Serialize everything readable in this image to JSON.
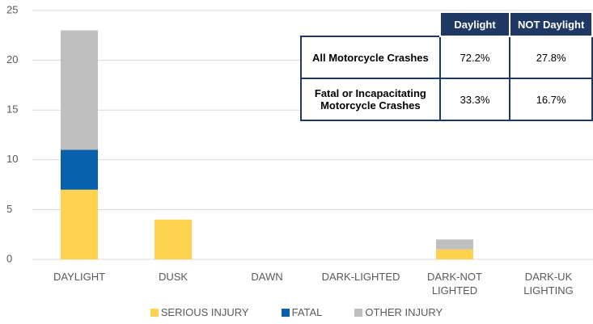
{
  "chart_data": {
    "type": "stacked_bar",
    "categories": [
      "DAYLIGHT",
      "DUSK",
      "DAWN",
      "DARK-LIGHTED",
      "DARK-NOT LIGHTED",
      "DARK-UK LIGHTING"
    ],
    "series": [
      {
        "name": "SERIOUS INJURY",
        "color": "#FFD34F",
        "values": [
          7,
          4,
          0,
          0,
          1,
          0
        ]
      },
      {
        "name": "FATAL",
        "color": "#0961AD",
        "values": [
          4,
          0,
          0,
          0,
          0,
          0
        ]
      },
      {
        "name": "OTHER INJURY",
        "color": "#BFBFBF",
        "values": [
          12,
          0,
          0,
          0,
          1,
          0
        ]
      }
    ],
    "ylim": [
      0,
      25
    ],
    "yticks": [
      0,
      5,
      10,
      15,
      20,
      25
    ],
    "grid": true,
    "legend": "bottom"
  },
  "table": {
    "header": [
      "Daylight",
      "NOT Daylight"
    ],
    "rows": [
      [
        "All Motorcycle Crashes",
        "72.2%",
        "27.8%"
      ],
      [
        "Fatal or Incapacitating Motorcycle Crashes",
        "33.3%",
        "16.7%"
      ]
    ]
  }
}
